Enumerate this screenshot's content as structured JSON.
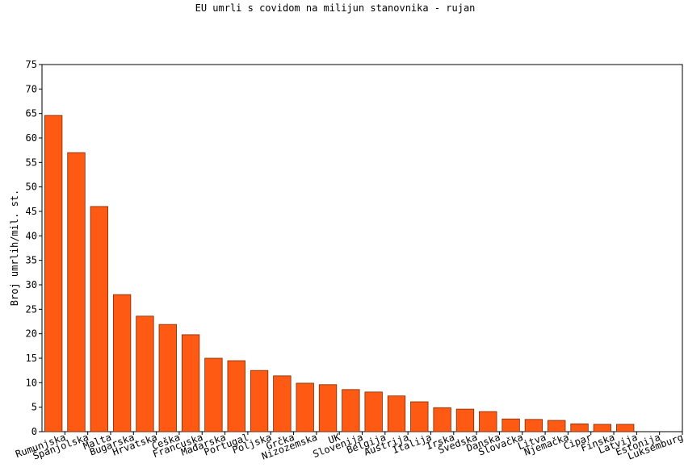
{
  "chart_data": {
    "type": "bar",
    "title": "EU umrli s covidom na milijun stanovnika - rujan",
    "y_label": "Broj umrlih/mil. st.",
    "categories": [
      "Rumunjska",
      "Španjolska",
      "Malta",
      "Bugarska",
      "Hrvatska",
      "Češka",
      "Francuska",
      "Mađarska",
      "Portugal",
      "Poljska",
      "Grčka",
      "Nizozemska",
      "UK",
      "Slovenija",
      "Belgija",
      "Austrija",
      "Italija",
      "Irska",
      "Švedska",
      "Danska",
      "Slovačka",
      "Litva",
      "Njemačka",
      "Cipar",
      "Finska",
      "Latvija",
      "Estonija",
      "Luksemburg"
    ],
    "values": [
      64.6,
      57.0,
      46.0,
      28.0,
      23.6,
      21.9,
      19.8,
      15.0,
      14.5,
      12.5,
      11.4,
      9.9,
      9.6,
      8.6,
      8.1,
      7.3,
      6.1,
      4.9,
      4.6,
      4.1,
      2.6,
      2.5,
      2.3,
      1.6,
      1.5,
      1.5,
      0,
      0
    ],
    "color": "#ff5a14",
    "ylim": [
      0,
      75
    ],
    "yticks": [
      0,
      5,
      10,
      15,
      20,
      25,
      30,
      35,
      40,
      45,
      50,
      55,
      60,
      65,
      70,
      75
    ],
    "grid": false
  }
}
